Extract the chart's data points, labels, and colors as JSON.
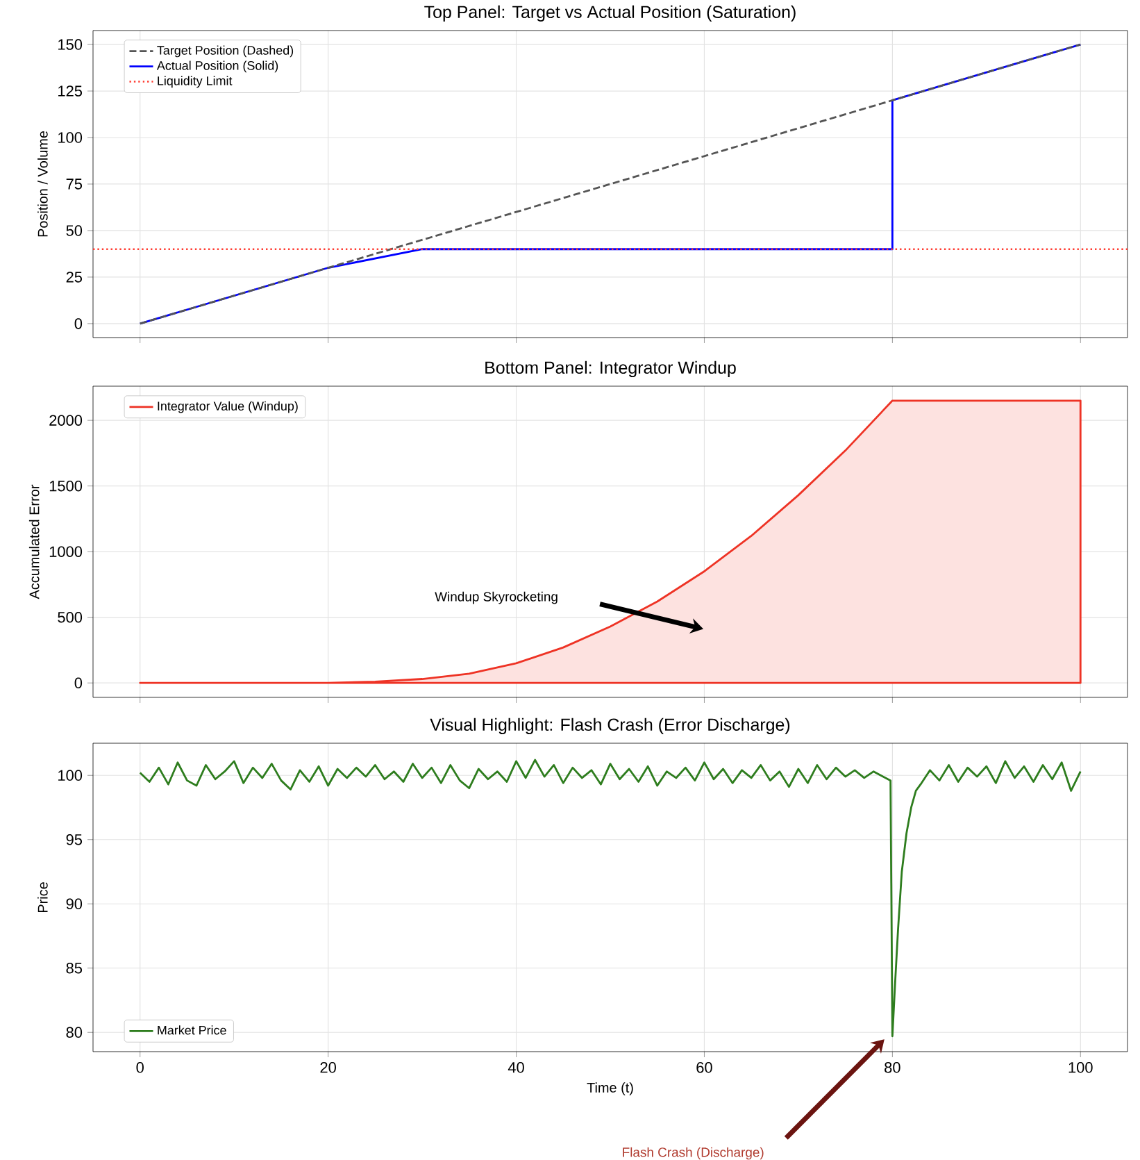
{
  "chart_data": [
    {
      "type": "line",
      "title": "Top Panel: Target vs Actual Position (Saturation)",
      "ylabel": "Position / Volume",
      "series": [
        {
          "name": "Target Position (Dashed)",
          "color": "#555555",
          "line_style": "dashed",
          "x": [
            0,
            100
          ],
          "values": [
            0,
            150
          ]
        },
        {
          "name": "Actual Position (Solid)",
          "color": "#0000ff",
          "line_style": "solid",
          "x": [
            0,
            20,
            30,
            80,
            80,
            100
          ],
          "values": [
            0,
            30,
            40,
            40,
            120,
            150
          ]
        }
      ],
      "ref_lines": [
        {
          "axis": "y",
          "value": 40,
          "label": "Liquidity Limit",
          "color": "#ff3b30",
          "line_style": "dotted"
        }
      ],
      "xlim": [
        -5,
        105
      ],
      "xticks": [
        0,
        20,
        40,
        60,
        80,
        100
      ],
      "ylim": [
        -7.5,
        157.5
      ],
      "yticks": [
        0,
        25,
        50,
        75,
        100,
        125,
        150
      ],
      "tick_labels": "y",
      "grid": true,
      "legend": "top left"
    },
    {
      "type": "area",
      "title": "Bottom Panel: Integrator Windup",
      "ylabel": "Accumulated Error",
      "series": [
        {
          "name": "Integrator Value (Windup)",
          "color": "#ee3325",
          "x": [
            0,
            20,
            25,
            30,
            35,
            40,
            45,
            50,
            55,
            60,
            65,
            70,
            75,
            80,
            100
          ],
          "values": [
            0,
            0,
            10,
            30,
            70,
            150,
            270,
            430,
            620,
            850,
            1120,
            1430,
            1770,
            2150,
            2150
          ]
        }
      ],
      "annotations": [
        "Windup Skyrocketing"
      ],
      "xlim": [
        -5,
        105
      ],
      "xticks": [
        0,
        20,
        40,
        60,
        80,
        100
      ],
      "ylim": [
        -110,
        2260
      ],
      "yticks": [
        0,
        500,
        1000,
        1500,
        2000
      ],
      "tick_labels": "y",
      "grid": true,
      "legend": "top left"
    },
    {
      "type": "line",
      "title": "Visual Highlight: Flash Crash (Error Discharge)",
      "xlabel": "Time (t)",
      "ylabel": "Price",
      "series": [
        {
          "name": "Market Price",
          "color": "#2e7d1e",
          "x": [
            0,
            1,
            2,
            3,
            4,
            5,
            6,
            7,
            8,
            9,
            10,
            11,
            12,
            13,
            14,
            15,
            16,
            17,
            18,
            19,
            20,
            21,
            22,
            23,
            24,
            25,
            26,
            27,
            28,
            29,
            30,
            31,
            32,
            33,
            34,
            35,
            36,
            37,
            38,
            39,
            40,
            41,
            42,
            43,
            44,
            45,
            46,
            47,
            48,
            49,
            50,
            51,
            52,
            53,
            54,
            55,
            56,
            57,
            58,
            59,
            60,
            61,
            62,
            63,
            64,
            65,
            66,
            67,
            68,
            69,
            70,
            71,
            72,
            73,
            74,
            75,
            76,
            77,
            78,
            79,
            79.8,
            80,
            80.3,
            80.6,
            81,
            81.5,
            82,
            82.5,
            83,
            84,
            85,
            86,
            87,
            88,
            89,
            90,
            91,
            92,
            93,
            94,
            95,
            96,
            97,
            98,
            99,
            100
          ],
          "values": [
            100.2,
            99.5,
            100.6,
            99.3,
            101.0,
            99.6,
            99.2,
            100.8,
            99.7,
            100.3,
            101.1,
            99.4,
            100.6,
            99.8,
            100.9,
            99.6,
            98.9,
            100.4,
            99.5,
            100.7,
            99.2,
            100.5,
            99.8,
            100.6,
            99.9,
            100.8,
            99.7,
            100.3,
            99.5,
            100.9,
            99.8,
            100.6,
            99.4,
            100.8,
            99.6,
            99.0,
            100.5,
            99.7,
            100.3,
            99.5,
            101.1,
            99.8,
            101.2,
            99.9,
            100.8,
            99.4,
            100.6,
            99.8,
            100.4,
            99.3,
            100.9,
            99.7,
            100.5,
            99.5,
            100.7,
            99.2,
            100.3,
            99.8,
            100.6,
            99.6,
            101.0,
            99.7,
            100.5,
            99.4,
            100.4,
            99.8,
            100.8,
            99.6,
            100.3,
            99.1,
            100.5,
            99.4,
            100.8,
            99.7,
            100.6,
            99.9,
            100.4,
            99.8,
            100.3,
            99.9,
            99.6,
            79.7,
            84,
            88,
            92.5,
            95.5,
            97.5,
            98.8,
            99.3,
            100.4,
            99.6,
            100.8,
            99.5,
            100.6,
            99.9,
            100.7,
            99.4,
            101.1,
            99.8,
            100.7,
            99.5,
            100.8,
            99.7,
            101.0,
            98.8,
            100.3
          ]
        }
      ],
      "annotations": [
        "Flash Crash (Discharge)"
      ],
      "xlim": [
        -5,
        105
      ],
      "xticks": [
        0,
        20,
        40,
        60,
        80,
        100
      ],
      "ylim": [
        78.5,
        102.5
      ],
      "yticks": [
        80,
        85,
        90,
        95,
        100
      ],
      "grid": true,
      "legend": "bottom left"
    }
  ]
}
